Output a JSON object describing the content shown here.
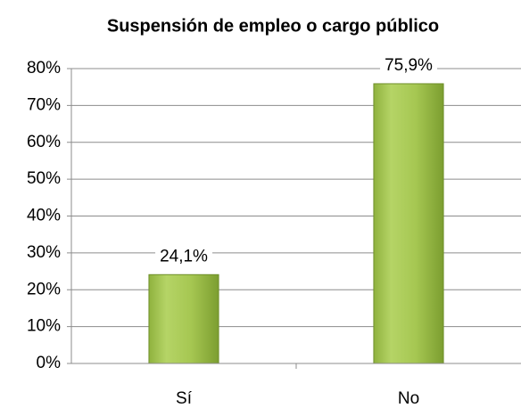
{
  "chart_data": {
    "type": "bar",
    "title": "Suspensión de empleo o cargo público",
    "categories": [
      "Sí",
      "No"
    ],
    "values": [
      24.1,
      75.9
    ],
    "value_labels": [
      "24,1%",
      "75,9%"
    ],
    "color": "#9bbb59",
    "ylim": [
      0,
      80
    ],
    "yticks": [
      {
        "value": 0,
        "label": "0%"
      },
      {
        "value": 10,
        "label": "10%"
      },
      {
        "value": 20,
        "label": "20%"
      },
      {
        "value": 30,
        "label": "30%"
      },
      {
        "value": 40,
        "label": "40%"
      },
      {
        "value": 50,
        "label": "50%"
      },
      {
        "value": 60,
        "label": "60%"
      },
      {
        "value": 70,
        "label": "70%"
      },
      {
        "value": 80,
        "label": "80%"
      }
    ],
    "grid": true
  }
}
